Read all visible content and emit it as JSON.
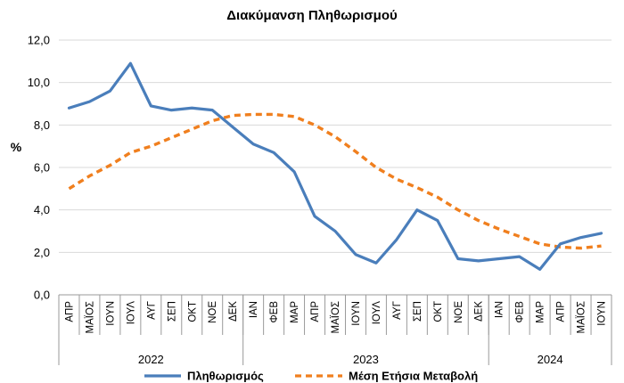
{
  "chart_data": {
    "type": "line",
    "title": "Διακύμανση Πληθωρισμού",
    "ylabel": "%",
    "ylim": [
      0,
      12
    ],
    "yticks": [
      "0,0",
      "2,0",
      "4,0",
      "6,0",
      "8,0",
      "10,0",
      "12,0"
    ],
    "grid": "horizontal",
    "legend_position": "bottom",
    "categories": [
      "ΑΠΡ",
      "ΜΑΪΟΣ",
      "ΙΟΥΝ",
      "ΙΟΥΛ",
      "ΑΥΓ",
      "ΣΕΠ",
      "ΟΚΤ",
      "ΝΟΕ",
      "ΔΕΚ",
      "ΙΑΝ",
      "ΦΕΒ",
      "ΜΑΡ",
      "ΑΠΡ",
      "ΜΑΪΟΣ",
      "ΙΟΥΝ",
      "ΙΟΥΛ",
      "ΑΥΓ",
      "ΣΕΠ",
      "ΟΚΤ",
      "ΝΟΕ",
      "ΔΕΚ",
      "ΙΑΝ",
      "ΦΕΒ",
      "ΜΑΡ",
      "ΑΠΡ",
      "ΜΑΪΟΣ",
      "ΙΟΥΝ"
    ],
    "year_groups": [
      {
        "label": "2022",
        "count": 9
      },
      {
        "label": "2023",
        "count": 12
      },
      {
        "label": "2024",
        "count": 6
      }
    ],
    "series": [
      {
        "name": "Πληθωρισμός",
        "color": "#4a7ebb",
        "style": "solid",
        "values": [
          8.8,
          9.1,
          9.6,
          10.9,
          8.9,
          8.7,
          8.8,
          8.7,
          7.9,
          7.1,
          6.7,
          5.8,
          3.7,
          3.0,
          1.9,
          1.5,
          2.6,
          4.0,
          3.5,
          1.7,
          1.6,
          1.7,
          1.8,
          1.2,
          2.4,
          2.7,
          2.9
        ]
      },
      {
        "name": "Μέση Ετήσια Μεταβολή",
        "color": "#f07f1e",
        "style": "dashed",
        "values": [
          5.0,
          5.6,
          6.1,
          6.7,
          7.0,
          7.4,
          7.8,
          8.2,
          8.45,
          8.5,
          8.5,
          8.4,
          8.0,
          7.45,
          6.75,
          6.0,
          5.45,
          5.05,
          4.6,
          4.0,
          3.5,
          3.1,
          2.75,
          2.4,
          2.25,
          2.2,
          2.3
        ]
      }
    ]
  }
}
